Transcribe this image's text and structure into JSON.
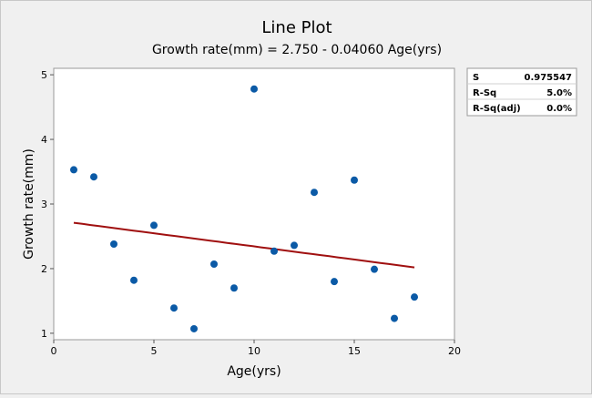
{
  "chart_data": {
    "type": "scatter",
    "title": "Line Plot",
    "subtitle": "Growth rate(mm) = 2.750 - 0.04060 Age(yrs)",
    "xlabel": "Age(yrs)",
    "ylabel": "Growth rate(mm)",
    "xlim": [
      0,
      20
    ],
    "ylim": [
      0.9,
      5.1
    ],
    "xticks": [
      "0",
      "5",
      "10",
      "15",
      "20"
    ],
    "yticks": [
      "1",
      "2",
      "3",
      "4",
      "5"
    ],
    "grid": false,
    "points": {
      "x": [
        1,
        2,
        3,
        4,
        5,
        6,
        7,
        8,
        9,
        10,
        11,
        12,
        13,
        14,
        15,
        16,
        17,
        18
      ],
      "y": [
        3.53,
        3.42,
        2.38,
        1.82,
        2.67,
        1.39,
        1.07,
        2.07,
        1.7,
        4.78,
        2.27,
        2.36,
        3.18,
        1.8,
        3.37,
        1.99,
        1.23,
        1.56
      ]
    },
    "fit_line": {
      "intercept": 2.75,
      "slope": -0.0406,
      "x_from": 1,
      "x_to": 18
    },
    "colors": {
      "points": "#0b5aa6",
      "fit_line": "#a01010"
    },
    "stats": [
      {
        "label": "S",
        "value": "0.975547"
      },
      {
        "label": "R-Sq",
        "value": "5.0%"
      },
      {
        "label": "R-Sq(adj)",
        "value": "0.0%"
      }
    ]
  }
}
